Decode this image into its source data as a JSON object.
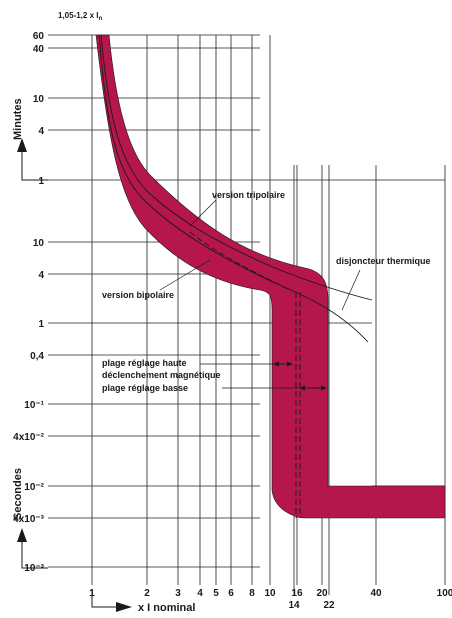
{
  "chart_data": {
    "type": "area",
    "title": "",
    "xlabel": "x I nominal",
    "ylabel_minutes": "Minutes",
    "ylabel_seconds": "Secondes",
    "x_scale": "log",
    "xlim": [
      1,
      100
    ],
    "x_ticks_top_row": [
      "1",
      "2",
      "3",
      "4",
      "5",
      "6",
      "8",
      "10",
      "16",
      "20",
      "40",
      "100"
    ],
    "x_ticks_bottom_row": [
      "14",
      "22"
    ],
    "y_ticks_minutes": [
      "60",
      "40",
      "10",
      "4",
      "1"
    ],
    "y_ticks_seconds": [
      "10",
      "4",
      "1",
      "0,4",
      "10⁻¹",
      "4x10⁻²",
      "10⁻²",
      "4x10⁻³",
      "10⁻³"
    ],
    "top_label": "1,05-1,2 x I",
    "top_label_sub": "n",
    "band_color": "#b5174a",
    "series": [
      {
        "name": "version tripolaire",
        "x": [
          1.05,
          1.5,
          2,
          3,
          4,
          6,
          10,
          15,
          30
        ],
        "y_seconds": [
          3600,
          1500,
          240,
          45,
          15,
          7,
          4,
          2.4,
          1.6
        ]
      },
      {
        "name": "version bipolaire",
        "x": [
          1.05,
          1.5,
          2,
          3,
          4,
          6,
          10,
          15,
          30
        ],
        "y_seconds": [
          3600,
          1400,
          200,
          38,
          12,
          6,
          3.6,
          2.1,
          1.3
        ]
      },
      {
        "name": "disjoncteur thermique",
        "x": [
          1.05,
          1.5,
          2,
          3,
          4,
          6,
          10,
          15,
          30
        ],
        "y_seconds": [
          3600,
          1500,
          240,
          45,
          15,
          7,
          4,
          2.4,
          1.6
        ]
      }
    ],
    "annotations": [
      "version tripolaire",
      "version bipolaire",
      "disjoncteur thermique",
      "plage réglage haute",
      "déclenchement magnétique",
      "plage réglage basse"
    ]
  }
}
